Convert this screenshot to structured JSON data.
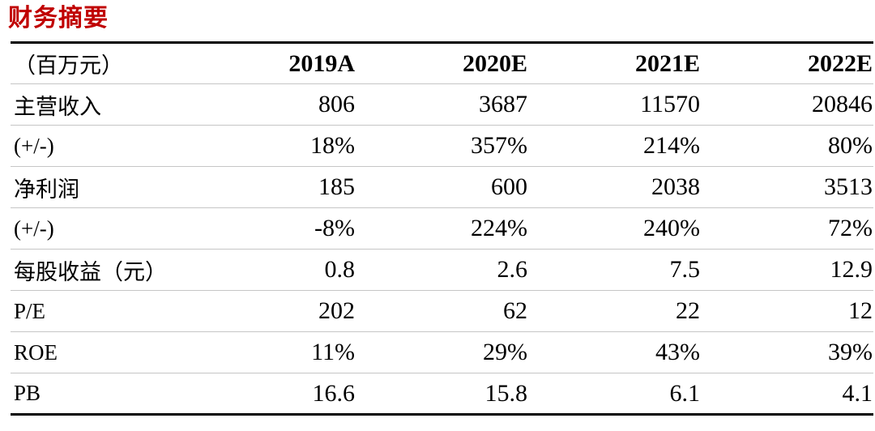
{
  "title": "财务摘要",
  "table": {
    "unit_header": "（百万元）",
    "year_headers": [
      "2019A",
      "2020E",
      "2021E",
      "2022E"
    ],
    "rows": [
      {
        "label": "主营收入",
        "values": [
          "806",
          "3687",
          "11570",
          "20846"
        ]
      },
      {
        "label": "(+/-)",
        "values": [
          "18%",
          "357%",
          "214%",
          "80%"
        ]
      },
      {
        "label": "净利润",
        "values": [
          "185",
          "600",
          "2038",
          "3513"
        ]
      },
      {
        "label": "(+/-)",
        "values": [
          "-8%",
          "224%",
          "240%",
          "72%"
        ]
      },
      {
        "label": "每股收益（元）",
        "values": [
          "0.8",
          "2.6",
          "7.5",
          "12.9"
        ]
      },
      {
        "label": "P/E",
        "values": [
          "202",
          "62",
          "22",
          "12"
        ]
      },
      {
        "label": "ROE",
        "values": [
          "11%",
          "29%",
          "43%",
          "39%"
        ]
      },
      {
        "label": "PB",
        "values": [
          "16.6",
          "15.8",
          "6.1",
          "4.1"
        ]
      }
    ]
  },
  "colors": {
    "title_red": "#C00000",
    "thick_line": "#000000",
    "thin_line": "#C6C6C6"
  }
}
